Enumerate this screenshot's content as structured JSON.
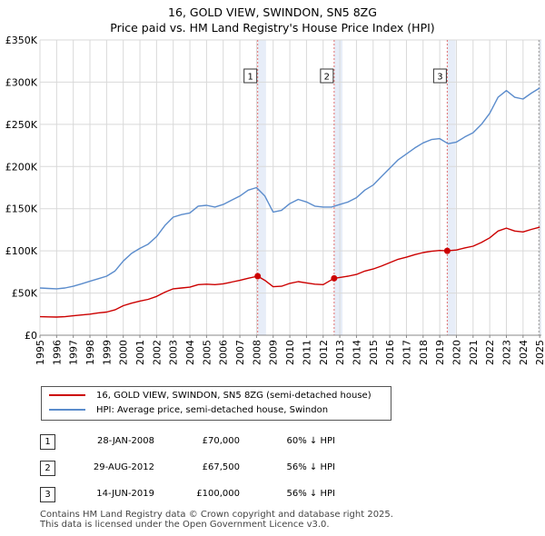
{
  "title": {
    "line1": "16, GOLD VIEW, SWINDON, SN5 8ZG",
    "line2": "Price paid vs. HM Land Registry's House Price Index (HPI)"
  },
  "chart_data": {
    "type": "line",
    "xlim": [
      1995,
      2025.1
    ],
    "ylim": [
      0,
      350000
    ],
    "yticks": [
      {
        "value": 0,
        "label": "£0"
      },
      {
        "value": 50000,
        "label": "£50K"
      },
      {
        "value": 100000,
        "label": "£100K"
      },
      {
        "value": 150000,
        "label": "£150K"
      },
      {
        "value": 200000,
        "label": "£200K"
      },
      {
        "value": 250000,
        "label": "£250K"
      },
      {
        "value": 300000,
        "label": "£300K"
      },
      {
        "value": 350000,
        "label": "£350K"
      }
    ],
    "xticks": [
      "1995",
      "1996",
      "1997",
      "1998",
      "1999",
      "2000",
      "2001",
      "2002",
      "2003",
      "2004",
      "2005",
      "2006",
      "2007",
      "2008",
      "2009",
      "2010",
      "2011",
      "2012",
      "2013",
      "2014",
      "2015",
      "2016",
      "2017",
      "2018",
      "2019",
      "2020",
      "2021",
      "2022",
      "2023",
      "2024",
      "2025"
    ],
    "grid": true,
    "series": [
      {
        "name": "HPI: Average price, semi-detached house, Swindon",
        "color": "#5b8ccc",
        "points": [
          [
            1995.0,
            56000
          ],
          [
            1995.5,
            55500
          ],
          [
            1996.0,
            55000
          ],
          [
            1996.5,
            56000
          ],
          [
            1997.0,
            58000
          ],
          [
            1997.5,
            61000
          ],
          [
            1998.0,
            64000
          ],
          [
            1998.5,
            67000
          ],
          [
            1999.0,
            70000
          ],
          [
            1999.5,
            76000
          ],
          [
            2000.0,
            88000
          ],
          [
            2000.5,
            97000
          ],
          [
            2001.0,
            103000
          ],
          [
            2001.5,
            108000
          ],
          [
            2002.0,
            117000
          ],
          [
            2002.5,
            130000
          ],
          [
            2003.0,
            140000
          ],
          [
            2003.5,
            143000
          ],
          [
            2004.0,
            145000
          ],
          [
            2004.5,
            153000
          ],
          [
            2005.0,
            154000
          ],
          [
            2005.5,
            152000
          ],
          [
            2006.0,
            155000
          ],
          [
            2006.5,
            160000
          ],
          [
            2007.0,
            165000
          ],
          [
            2007.5,
            172000
          ],
          [
            2008.0,
            175000
          ],
          [
            2008.5,
            165000
          ],
          [
            2009.0,
            146000
          ],
          [
            2009.5,
            148000
          ],
          [
            2010.0,
            156000
          ],
          [
            2010.5,
            161000
          ],
          [
            2011.0,
            158000
          ],
          [
            2011.5,
            153000
          ],
          [
            2012.0,
            152000
          ],
          [
            2012.5,
            152000
          ],
          [
            2013.0,
            155000
          ],
          [
            2013.5,
            158000
          ],
          [
            2014.0,
            163000
          ],
          [
            2014.5,
            172000
          ],
          [
            2015.0,
            178000
          ],
          [
            2015.5,
            188000
          ],
          [
            2016.0,
            198000
          ],
          [
            2016.5,
            208000
          ],
          [
            2017.0,
            215000
          ],
          [
            2017.5,
            222000
          ],
          [
            2018.0,
            228000
          ],
          [
            2018.5,
            232000
          ],
          [
            2019.0,
            233000
          ],
          [
            2019.5,
            227000
          ],
          [
            2020.0,
            229000
          ],
          [
            2020.5,
            235000
          ],
          [
            2021.0,
            240000
          ],
          [
            2021.5,
            250000
          ],
          [
            2022.0,
            263000
          ],
          [
            2022.5,
            282000
          ],
          [
            2023.0,
            290000
          ],
          [
            2023.5,
            282000
          ],
          [
            2024.0,
            280000
          ],
          [
            2024.5,
            287000
          ],
          [
            2025.0,
            293000
          ]
        ]
      },
      {
        "name": "16, GOLD VIEW, SWINDON, SN5 8ZG (semi-detached house)",
        "color": "#cc0000",
        "points": [
          [
            1995.0,
            22000
          ],
          [
            1995.5,
            21800
          ],
          [
            1996.0,
            21500
          ],
          [
            1996.5,
            22000
          ],
          [
            1997.0,
            23000
          ],
          [
            1997.5,
            24000
          ],
          [
            1998.0,
            25000
          ],
          [
            1998.5,
            26500
          ],
          [
            1999.0,
            27500
          ],
          [
            1999.5,
            30000
          ],
          [
            2000.0,
            35000
          ],
          [
            2000.5,
            38000
          ],
          [
            2001.0,
            40500
          ],
          [
            2001.5,
            42500
          ],
          [
            2002.0,
            46000
          ],
          [
            2002.5,
            51000
          ],
          [
            2003.0,
            55000
          ],
          [
            2003.5,
            56000
          ],
          [
            2004.0,
            57000
          ],
          [
            2004.5,
            60000
          ],
          [
            2005.0,
            60500
          ],
          [
            2005.5,
            60000
          ],
          [
            2006.0,
            61000
          ],
          [
            2006.5,
            63000
          ],
          [
            2007.0,
            65000
          ],
          [
            2007.5,
            67500
          ],
          [
            2008.07,
            70000
          ],
          [
            2008.5,
            65000
          ],
          [
            2009.0,
            57500
          ],
          [
            2009.5,
            58000
          ],
          [
            2010.0,
            61500
          ],
          [
            2010.5,
            63500
          ],
          [
            2011.0,
            62000
          ],
          [
            2011.5,
            60500
          ],
          [
            2012.0,
            60000
          ],
          [
            2012.66,
            67500
          ],
          [
            2013.0,
            68500
          ],
          [
            2013.5,
            70000
          ],
          [
            2014.0,
            72000
          ],
          [
            2014.5,
            76000
          ],
          [
            2015.0,
            78500
          ],
          [
            2015.5,
            82000
          ],
          [
            2016.0,
            86000
          ],
          [
            2016.5,
            90000
          ],
          [
            2017.0,
            92500
          ],
          [
            2017.5,
            95500
          ],
          [
            2018.0,
            98000
          ],
          [
            2018.5,
            99500
          ],
          [
            2019.0,
            100500
          ],
          [
            2019.45,
            100000
          ],
          [
            2020.0,
            101000
          ],
          [
            2020.5,
            103500
          ],
          [
            2021.0,
            105500
          ],
          [
            2021.5,
            110000
          ],
          [
            2022.0,
            115500
          ],
          [
            2022.5,
            123500
          ],
          [
            2023.0,
            127000
          ],
          [
            2023.5,
            123500
          ],
          [
            2024.0,
            122500
          ],
          [
            2024.5,
            125500
          ],
          [
            2025.0,
            128000
          ]
        ]
      }
    ],
    "sales": [
      {
        "label": "1",
        "x": 2008.07,
        "price": 70000
      },
      {
        "label": "2",
        "x": 2012.66,
        "price": 67500
      },
      {
        "label": "3",
        "x": 2019.45,
        "price": 100000
      }
    ]
  },
  "legend": {
    "property_label": "16, GOLD VIEW, SWINDON, SN5 8ZG (semi-detached house)",
    "hpi_label": "HPI: Average price, semi-detached house, Swindon",
    "property_color": "#cc0000",
    "hpi_color": "#5b8ccc"
  },
  "sales_table": [
    {
      "num": "1",
      "date": "28-JAN-2008",
      "price": "£70,000",
      "hpi": "60% ↓ HPI"
    },
    {
      "num": "2",
      "date": "29-AUG-2012",
      "price": "£67,500",
      "hpi": "56% ↓ HPI"
    },
    {
      "num": "3",
      "date": "14-JUN-2019",
      "price": "£100,000",
      "hpi": "56% ↓ HPI"
    }
  ],
  "footer": {
    "line1": "Contains HM Land Registry data © Crown copyright and database right 2025.",
    "line2": "This data is licensed under the Open Government Licence v3.0."
  }
}
